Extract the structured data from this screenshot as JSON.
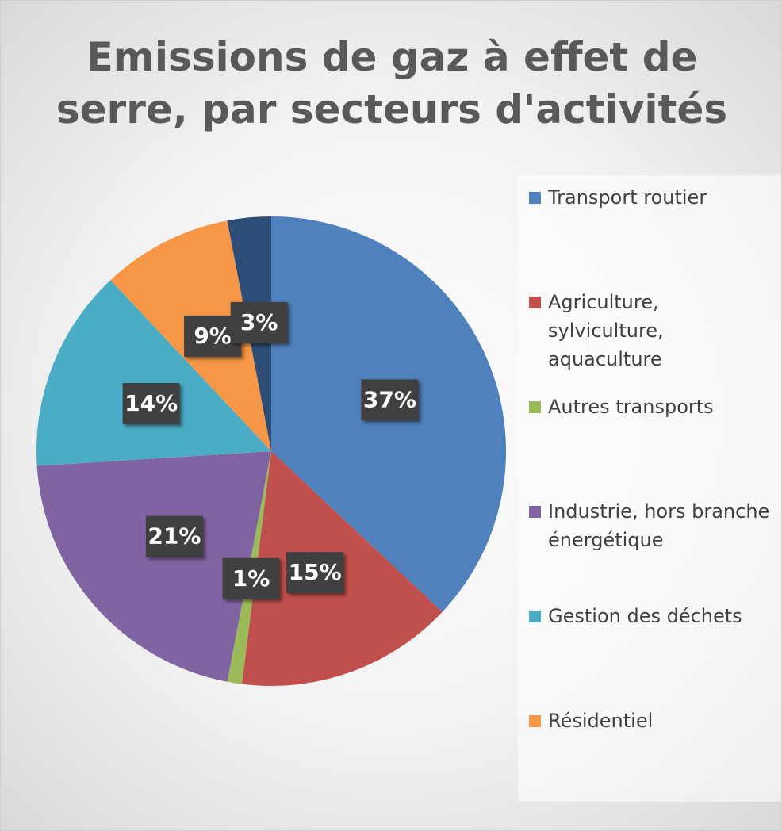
{
  "chart_data": {
    "type": "pie",
    "title": "Emissions de gaz à effet de serre, par secteurs d'activités",
    "categories": [
      "Transport routier",
      "Agriculture, sylviculture, aquaculture",
      "Autres transports",
      "Industrie, hors branche énergétique",
      "Gestion des déchets",
      "Résidentiel",
      null
    ],
    "values": [
      37,
      15,
      1,
      21,
      14,
      9,
      3
    ],
    "value_labels": [
      "37%",
      "15%",
      "1%",
      "21%",
      "14%",
      "9%",
      "3%"
    ],
    "colors": [
      "#4f81bd",
      "#c0504d",
      "#9bbb59",
      "#8064a2",
      "#4bacc6",
      "#f79646",
      "#2c4d75"
    ],
    "legend": "right"
  }
}
